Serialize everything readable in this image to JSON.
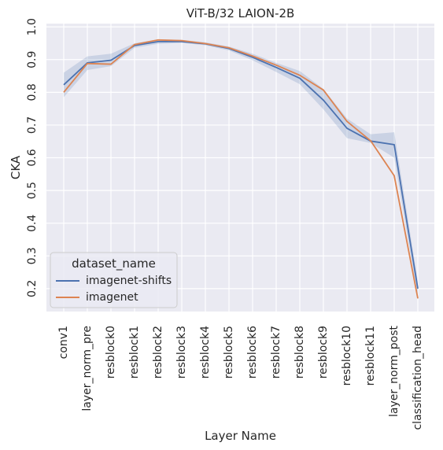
{
  "chart_data": {
    "type": "line",
    "title": "ViT-B/32  LAION-2B",
    "xlabel": "Layer Name",
    "ylabel": "CKA",
    "categories": [
      "conv1",
      "layer_norm_pre",
      "resblock0",
      "resblock1",
      "resblock2",
      "resblock3",
      "resblock4",
      "resblock5",
      "resblock6",
      "resblock7",
      "resblock8",
      "resblock9",
      "resblock10",
      "resblock11",
      "layer_norm_post",
      "classification_head"
    ],
    "ylim": [
      0.13,
      1.01
    ],
    "yticks": [
      "0.2",
      "0.3",
      "0.4",
      "0.5",
      "0.6",
      "0.7",
      "0.8",
      "0.9",
      "1.0"
    ],
    "grid": true,
    "legend": {
      "title": "dataset_name",
      "placement": "lower-left"
    },
    "series": [
      {
        "name": "imagenet-shifts",
        "color": "#4c72b0",
        "values": [
          0.823,
          0.89,
          0.898,
          0.943,
          0.955,
          0.955,
          0.948,
          0.934,
          0.907,
          0.876,
          0.843,
          0.776,
          0.69,
          0.651,
          0.64,
          0.2
        ],
        "ci_low": [
          0.785,
          0.868,
          0.88,
          0.936,
          0.948,
          0.951,
          0.944,
          0.928,
          0.898,
          0.862,
          0.825,
          0.748,
          0.66,
          0.645,
          0.6,
          0.175
        ],
        "ci_high": [
          0.86,
          0.91,
          0.918,
          0.95,
          0.962,
          0.96,
          0.953,
          0.94,
          0.918,
          0.89,
          0.865,
          0.81,
          0.72,
          0.672,
          0.678,
          0.222
        ]
      },
      {
        "name": "imagenet",
        "color": "#dd8452",
        "values": [
          0.8,
          0.888,
          0.886,
          0.946,
          0.96,
          0.958,
          0.949,
          0.936,
          0.911,
          0.883,
          0.852,
          0.807,
          0.711,
          0.652,
          0.545,
          0.17
        ],
        "ci_low": [
          0.8,
          0.886,
          0.884,
          0.945,
          0.959,
          0.957,
          0.948,
          0.935,
          0.91,
          0.882,
          0.85,
          0.805,
          0.709,
          0.651,
          0.544,
          0.169
        ],
        "ci_high": [
          0.802,
          0.89,
          0.888,
          0.947,
          0.961,
          0.959,
          0.95,
          0.937,
          0.912,
          0.884,
          0.854,
          0.809,
          0.713,
          0.653,
          0.546,
          0.171
        ]
      }
    ]
  }
}
